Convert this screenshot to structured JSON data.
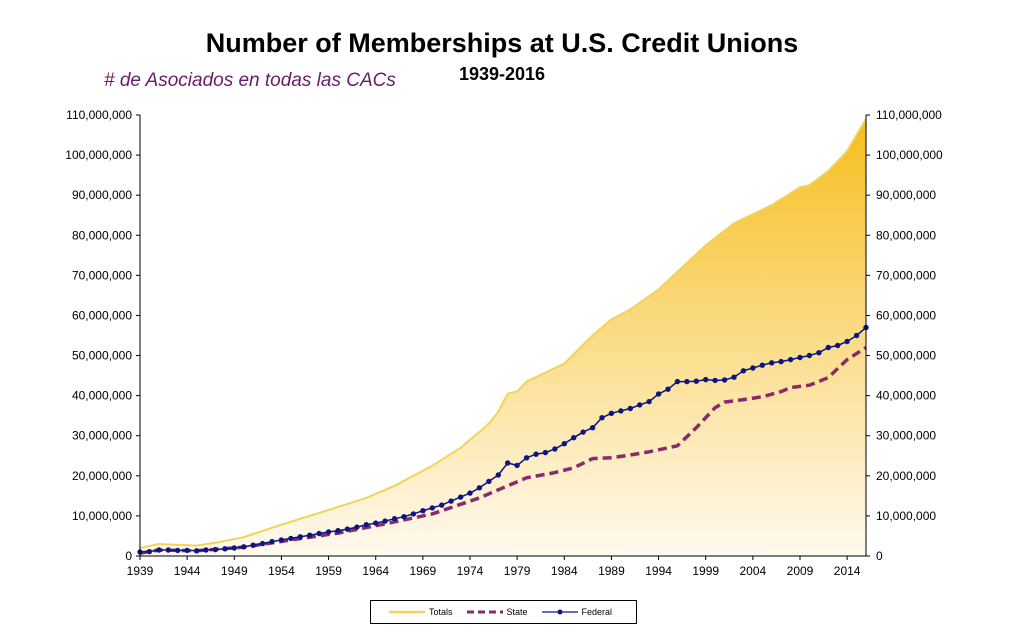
{
  "colors": {
    "totals_line": "#f1d35a",
    "totals_fill_top": "#f6be1e",
    "totals_fill_bottom": "#fffaf0",
    "state": "#8b2a6b",
    "federal": "#0d1580",
    "annotation": "#6b1a6b",
    "axis": "#000000"
  },
  "annotation": "# de Asociados en todas las CACs",
  "chart_data": {
    "type": "area",
    "title": "Number of Memberships at U.S. Credit Unions",
    "subtitle": "1939-2016",
    "xlim": [
      1939,
      2016
    ],
    "ylim": [
      0,
      110000000
    ],
    "x_ticks": [
      "1939",
      "1944",
      "1949",
      "1954",
      "1959",
      "1964",
      "1969",
      "1974",
      "1979",
      "1984",
      "1989",
      "1994",
      "1999",
      "2004",
      "2009",
      "2014"
    ],
    "y_ticks_left": [
      "0",
      "10,000,000",
      "20,000,000",
      "30,000,000",
      "40,000,000",
      "50,000,000",
      "60,000,000",
      "70,000,000",
      "80,000,000",
      "90,000,000",
      "100,000,000",
      "110,000,000"
    ],
    "y_ticks_right": [
      "0",
      "10,000,000",
      "20,000,000",
      "30,000,000",
      "40,000,000",
      "50,000,000",
      "60,000,000",
      "70,000,000",
      "80,000,000",
      "90,000,000",
      "100,000,000",
      "110,000,000"
    ],
    "legend_position": "bottom",
    "grid": false,
    "series": [
      {
        "name": "Totals",
        "style": "area",
        "points": [
          [
            1939,
            2000000
          ],
          [
            1941,
            3000000
          ],
          [
            1944,
            2700000
          ],
          [
            1945,
            2600000
          ],
          [
            1947,
            3300000
          ],
          [
            1950,
            4700000
          ],
          [
            1954,
            7800000
          ],
          [
            1959,
            11500000
          ],
          [
            1963,
            14500000
          ],
          [
            1966,
            17500000
          ],
          [
            1970,
            22500000
          ],
          [
            1973,
            27000000
          ],
          [
            1976,
            33000000
          ],
          [
            1977,
            36000000
          ],
          [
            1978,
            40500000
          ],
          [
            1979,
            41000000
          ],
          [
            1980,
            43500000
          ],
          [
            1984,
            48000000
          ],
          [
            1987,
            55000000
          ],
          [
            1989,
            59000000
          ],
          [
            1991,
            61500000
          ],
          [
            1994,
            66500000
          ],
          [
            1999,
            77500000
          ],
          [
            2002,
            83000000
          ],
          [
            2006,
            87500000
          ],
          [
            2009,
            92000000
          ],
          [
            2010,
            92500000
          ],
          [
            2012,
            96000000
          ],
          [
            2014,
            101000000
          ],
          [
            2016,
            109000000
          ]
        ]
      },
      {
        "name": "State",
        "style": "dashed",
        "points": [
          [
            1939,
            700000
          ],
          [
            1941,
            1500000
          ],
          [
            1945,
            1300000
          ],
          [
            1950,
            2200000
          ],
          [
            1955,
            4000000
          ],
          [
            1960,
            5700000
          ],
          [
            1965,
            8000000
          ],
          [
            1970,
            10500000
          ],
          [
            1975,
            14500000
          ],
          [
            1978,
            17500000
          ],
          [
            1980,
            19500000
          ],
          [
            1983,
            20800000
          ],
          [
            1985,
            22000000
          ],
          [
            1987,
            24300000
          ],
          [
            1989,
            24500000
          ],
          [
            1991,
            25200000
          ],
          [
            1993,
            26000000
          ],
          [
            1996,
            27500000
          ],
          [
            1998,
            32000000
          ],
          [
            2000,
            37000000
          ],
          [
            2001,
            38400000
          ],
          [
            2003,
            39000000
          ],
          [
            2005,
            39700000
          ],
          [
            2007,
            41000000
          ],
          [
            2008,
            42000000
          ],
          [
            2010,
            42600000
          ],
          [
            2012,
            44500000
          ],
          [
            2014,
            49000000
          ],
          [
            2016,
            52000000
          ]
        ]
      },
      {
        "name": "Federal",
        "style": "line-markers",
        "points": [
          [
            1939,
            1000000
          ],
          [
            1940,
            1100000
          ],
          [
            1941,
            1500000
          ],
          [
            1942,
            1500000
          ],
          [
            1943,
            1400000
          ],
          [
            1944,
            1400000
          ],
          [
            1945,
            1300000
          ],
          [
            1946,
            1500000
          ],
          [
            1947,
            1600000
          ],
          [
            1948,
            1800000
          ],
          [
            1949,
            2000000
          ],
          [
            1950,
            2300000
          ],
          [
            1951,
            2700000
          ],
          [
            1952,
            3100000
          ],
          [
            1953,
            3600000
          ],
          [
            1954,
            4000000
          ],
          [
            1955,
            4400000
          ],
          [
            1956,
            4800000
          ],
          [
            1957,
            5200000
          ],
          [
            1958,
            5600000
          ],
          [
            1959,
            6000000
          ],
          [
            1960,
            6300000
          ],
          [
            1961,
            6700000
          ],
          [
            1962,
            7200000
          ],
          [
            1963,
            7800000
          ],
          [
            1964,
            8200000
          ],
          [
            1965,
            8700000
          ],
          [
            1966,
            9300000
          ],
          [
            1967,
            9800000
          ],
          [
            1968,
            10500000
          ],
          [
            1969,
            11300000
          ],
          [
            1970,
            12000000
          ],
          [
            1971,
            12700000
          ],
          [
            1972,
            13700000
          ],
          [
            1973,
            14700000
          ],
          [
            1974,
            15700000
          ],
          [
            1975,
            17000000
          ],
          [
            1976,
            18600000
          ],
          [
            1977,
            20200000
          ],
          [
            1978,
            23200000
          ],
          [
            1979,
            22600000
          ],
          [
            1980,
            24500000
          ],
          [
            1981,
            25400000
          ],
          [
            1982,
            25800000
          ],
          [
            1983,
            26700000
          ],
          [
            1984,
            28000000
          ],
          [
            1985,
            29500000
          ],
          [
            1986,
            30900000
          ],
          [
            1987,
            32000000
          ],
          [
            1988,
            34500000
          ],
          [
            1989,
            35600000
          ],
          [
            1990,
            36200000
          ],
          [
            1991,
            36800000
          ],
          [
            1992,
            37700000
          ],
          [
            1993,
            38500000
          ],
          [
            1994,
            40400000
          ],
          [
            1995,
            41600000
          ],
          [
            1996,
            43500000
          ],
          [
            1997,
            43500000
          ],
          [
            1998,
            43600000
          ],
          [
            1999,
            44000000
          ],
          [
            2000,
            43800000
          ],
          [
            2001,
            43900000
          ],
          [
            2002,
            44600000
          ],
          [
            2003,
            46200000
          ],
          [
            2004,
            46900000
          ],
          [
            2005,
            47600000
          ],
          [
            2006,
            48200000
          ],
          [
            2007,
            48500000
          ],
          [
            2008,
            49000000
          ],
          [
            2009,
            49500000
          ],
          [
            2010,
            50000000
          ],
          [
            2011,
            50700000
          ],
          [
            2012,
            52000000
          ],
          [
            2013,
            52500000
          ],
          [
            2014,
            53500000
          ],
          [
            2015,
            55000000
          ],
          [
            2016,
            57000000
          ]
        ]
      }
    ]
  }
}
